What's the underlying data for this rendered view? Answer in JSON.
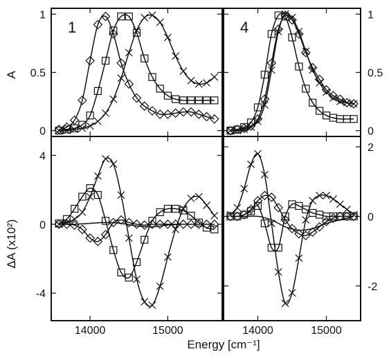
{
  "figure": {
    "xlabel": "Energy [cm⁻¹]",
    "ylabel_top": "A",
    "ylabel_bottom": "ΔA (x10²)",
    "panel_labels": [
      "1",
      "4"
    ]
  },
  "chart_data": [
    {
      "type": "line",
      "panel": "top-left",
      "label": "1",
      "xlim": [
        13500,
        15700
      ],
      "ylim": [
        -0.05,
        1.05
      ],
      "xticks": [
        14000,
        15000
      ],
      "yticks": [
        0,
        0.5,
        1
      ],
      "ylabel": "A",
      "series": [
        {
          "marker": "diamond",
          "x": [
            13600,
            13700,
            13800,
            13900,
            14000,
            14100,
            14200,
            14300,
            14400,
            14500,
            14600,
            14700,
            14800,
            14900,
            15000,
            15100,
            15200,
            15300,
            15400,
            15500,
            15600
          ],
          "y": [
            0.01,
            0.03,
            0.09,
            0.26,
            0.6,
            0.91,
            0.98,
            0.83,
            0.58,
            0.4,
            0.28,
            0.21,
            0.17,
            0.14,
            0.14,
            0.15,
            0.16,
            0.16,
            0.14,
            0.12,
            0.1
          ]
        },
        {
          "marker": "square",
          "x": [
            13600,
            13700,
            13800,
            13900,
            14000,
            14100,
            14200,
            14300,
            14400,
            14500,
            14600,
            14700,
            14800,
            14900,
            15000,
            15100,
            15200,
            15300,
            15400,
            15500,
            15600
          ],
          "y": [
            0.0,
            0.01,
            0.02,
            0.05,
            0.13,
            0.34,
            0.6,
            0.86,
            0.98,
            0.98,
            0.84,
            0.62,
            0.46,
            0.36,
            0.3,
            0.27,
            0.26,
            0.26,
            0.26,
            0.26,
            0.26
          ]
        },
        {
          "marker": "cross",
          "x": [
            13600,
            13700,
            13800,
            13900,
            14000,
            14100,
            14200,
            14300,
            14400,
            14500,
            14600,
            14700,
            14800,
            14900,
            15000,
            15100,
            15200,
            15300,
            15400,
            15500,
            15600
          ],
          "y": [
            0.0,
            0.0,
            0.01,
            0.02,
            0.04,
            0.08,
            0.15,
            0.27,
            0.45,
            0.67,
            0.86,
            0.97,
            0.99,
            0.93,
            0.8,
            0.64,
            0.51,
            0.43,
            0.4,
            0.41,
            0.46
          ]
        }
      ]
    },
    {
      "type": "line",
      "panel": "top-right",
      "label": "4",
      "xlim": [
        13500,
        15500
      ],
      "ylim": [
        -0.05,
        1.05
      ],
      "xticks": [
        14000,
        15000
      ],
      "yticks": [
        0,
        0.5,
        1
      ],
      "series": [
        {
          "marker": "square",
          "x": [
            13600,
            13700,
            13800,
            13900,
            14000,
            14100,
            14200,
            14300,
            14400,
            14500,
            14600,
            14700,
            14800,
            14900,
            15000,
            15100,
            15200,
            15300,
            15400
          ],
          "y": [
            0.0,
            0.01,
            0.03,
            0.07,
            0.2,
            0.48,
            0.83,
            0.99,
            0.98,
            0.8,
            0.55,
            0.36,
            0.24,
            0.17,
            0.13,
            0.11,
            0.1,
            0.1,
            0.1
          ]
        },
        {
          "marker": "diamond",
          "x": [
            13600,
            13700,
            13800,
            13900,
            14000,
            14100,
            14200,
            14300,
            14400,
            14500,
            14600,
            14700,
            14800,
            14900,
            15000,
            15100,
            15200,
            15300,
            15400
          ],
          "y": [
            0.0,
            0.01,
            0.02,
            0.04,
            0.1,
            0.27,
            0.58,
            0.87,
            0.99,
            0.95,
            0.83,
            0.67,
            0.54,
            0.44,
            0.35,
            0.3,
            0.27,
            0.24,
            0.23
          ]
        },
        {
          "marker": "cross",
          "x": [
            13600,
            13700,
            13800,
            13900,
            14000,
            14100,
            14200,
            14300,
            14400,
            14500,
            14600,
            14700,
            14800,
            14900,
            15000,
            15100,
            15200,
            15300,
            15400
          ],
          "y": [
            0.0,
            0.0,
            0.01,
            0.03,
            0.08,
            0.22,
            0.52,
            0.85,
            1.0,
            0.97,
            0.85,
            0.68,
            0.52,
            0.41,
            0.33,
            0.28,
            0.25,
            0.24,
            0.23
          ]
        }
      ]
    },
    {
      "type": "line",
      "panel": "bottom-left",
      "xlim": [
        13500,
        15700
      ],
      "ylim": [
        -5.6,
        5.1
      ],
      "xticks": [
        14000,
        15000
      ],
      "yticks": [
        -4,
        0,
        4
      ],
      "xticklabels": [
        "14000",
        "15000"
      ],
      "ylabel": "ΔA (x10²)",
      "series": [
        {
          "marker": "square",
          "x": [
            13600,
            13700,
            13800,
            13900,
            14000,
            14100,
            14200,
            14300,
            14400,
            14500,
            14600,
            14700,
            14800,
            14900,
            15000,
            15100,
            15200,
            15300,
            15400,
            15500,
            15600
          ],
          "y": [
            0.05,
            0.3,
            0.9,
            1.6,
            2.1,
            1.7,
            0.2,
            -1.5,
            -2.8,
            -3.1,
            -2.2,
            -0.9,
            0.2,
            0.7,
            0.9,
            0.9,
            0.8,
            0.5,
            0.1,
            -0.2,
            -0.3
          ]
        },
        {
          "marker": "diamond",
          "x": [
            13600,
            13700,
            13800,
            13900,
            14000,
            14100,
            14200,
            14300,
            14400,
            14500,
            14600,
            14700,
            14800,
            14900,
            15000,
            15100,
            15200,
            15300,
            15400,
            15500,
            15600
          ],
          "y": [
            0.0,
            0.0,
            -0.05,
            -0.3,
            -0.8,
            -1.0,
            -0.6,
            0.1,
            0.25,
            0.1,
            0.0,
            -0.05,
            0.0,
            0.0,
            0.0,
            0.0,
            0.0,
            0.0,
            0.0,
            0.0,
            0.0
          ]
        },
        {
          "marker": "cross",
          "x": [
            13600,
            13700,
            13800,
            13900,
            14000,
            14100,
            14200,
            14300,
            14400,
            14500,
            14600,
            14700,
            14800,
            14900,
            15000,
            15100,
            15200,
            15300,
            15400,
            15500,
            15600
          ],
          "y": [
            0.0,
            0.1,
            0.3,
            0.7,
            1.6,
            2.8,
            3.8,
            3.5,
            1.7,
            -0.8,
            -3.2,
            -4.5,
            -4.7,
            -3.6,
            -1.9,
            -0.3,
            0.9,
            1.5,
            1.6,
            1.1,
            0.5
          ]
        },
        {
          "marker": "none",
          "x": [
            13600,
            13800,
            14000,
            14200,
            14400,
            14600,
            14800,
            15000,
            15200,
            15400,
            15600
          ],
          "y": [
            0.0,
            0.0,
            0.05,
            0.1,
            0.05,
            -0.1,
            -0.15,
            -0.05,
            0.0,
            0.0,
            0.0
          ]
        }
      ]
    },
    {
      "type": "line",
      "panel": "bottom-right",
      "xlim": [
        13500,
        15500
      ],
      "ylim": [
        -3.0,
        2.3
      ],
      "xticks": [
        14000,
        15000
      ],
      "yticks": [
        -2,
        0,
        2
      ],
      "xticklabels": [
        "14000",
        "15000"
      ],
      "series": [
        {
          "marker": "cross",
          "x": [
            13600,
            13700,
            13800,
            13900,
            14000,
            14100,
            14200,
            14300,
            14400,
            14500,
            14600,
            14700,
            14800,
            14900,
            15000,
            15100,
            15200,
            15300,
            15400
          ],
          "y": [
            0.05,
            0.25,
            0.8,
            1.5,
            1.8,
            1.2,
            -0.2,
            -1.6,
            -2.5,
            -2.2,
            -1.2,
            -0.1,
            0.45,
            0.6,
            0.6,
            0.5,
            0.35,
            0.2,
            0.05
          ]
        },
        {
          "marker": "square",
          "x": [
            13600,
            13700,
            13800,
            13900,
            14000,
            14100,
            14200,
            14300,
            14400,
            14500,
            14600,
            14700,
            14800,
            14900,
            15000,
            15100,
            15200,
            15300,
            15400
          ],
          "y": [
            0.0,
            0.0,
            0.05,
            0.15,
            0.3,
            -0.2,
            -0.9,
            -0.9,
            0.0,
            0.35,
            0.3,
            0.2,
            0.1,
            0.05,
            0.0,
            0.0,
            0.0,
            0.0,
            0.0
          ]
        },
        {
          "marker": "diamond",
          "x": [
            13600,
            13700,
            13800,
            13900,
            14000,
            14100,
            14200,
            14300,
            14400,
            14500,
            14600,
            14700,
            14800,
            14900,
            15000,
            15100,
            15200,
            15300,
            15400
          ],
          "y": [
            0.0,
            0.0,
            0.05,
            0.2,
            0.45,
            0.6,
            0.55,
            0.25,
            -0.1,
            -0.35,
            -0.5,
            -0.55,
            -0.45,
            -0.3,
            -0.15,
            -0.05,
            0.0,
            0.0,
            0.0
          ]
        },
        {
          "marker": "none",
          "x": [
            13600,
            13800,
            14000,
            14200,
            14400,
            14600,
            14800,
            15000,
            15200,
            15400
          ],
          "y": [
            0.0,
            0.0,
            0.0,
            -0.1,
            -0.3,
            -0.4,
            -0.35,
            -0.2,
            -0.1,
            0.0
          ]
        }
      ]
    }
  ]
}
